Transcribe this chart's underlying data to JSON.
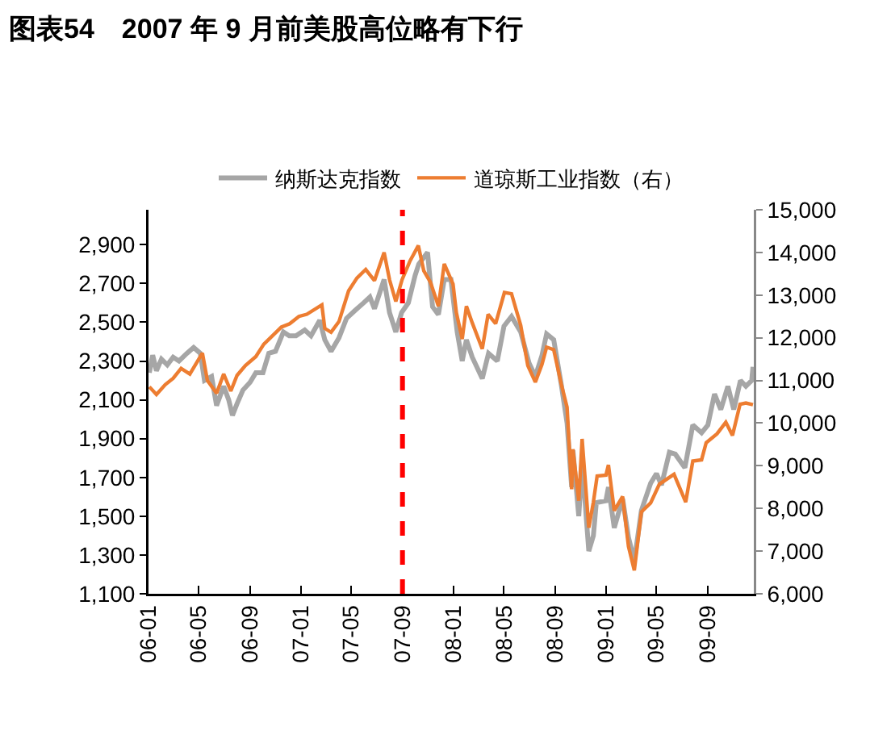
{
  "chart_data": {
    "type": "line",
    "title": "图表54　2007 年 9 月前美股高位略有下行",
    "xlim": [
      "2006-01-01",
      "2009-12-20"
    ],
    "xticks": [
      {
        "value": "2006-01-01",
        "label": "06-01"
      },
      {
        "value": "2006-05-01",
        "label": "06-05"
      },
      {
        "value": "2006-09-01",
        "label": "06-09"
      },
      {
        "value": "2007-01-01",
        "label": "07-01"
      },
      {
        "value": "2007-05-01",
        "label": "07-05"
      },
      {
        "value": "2007-09-01",
        "label": "07-09"
      },
      {
        "value": "2008-01-01",
        "label": "08-01"
      },
      {
        "value": "2008-05-01",
        "label": "08-05"
      },
      {
        "value": "2008-09-01",
        "label": "08-09"
      },
      {
        "value": "2009-01-01",
        "label": "09-01"
      },
      {
        "value": "2009-05-01",
        "label": "09-05"
      },
      {
        "value": "2009-09-01",
        "label": "09-09"
      }
    ],
    "ylim": [
      1100,
      3080
    ],
    "yticks": [
      {
        "value": 1100,
        "label": "1,100"
      },
      {
        "value": 1300,
        "label": "1,300"
      },
      {
        "value": 1500,
        "label": "1,500"
      },
      {
        "value": 1700,
        "label": "1,700"
      },
      {
        "value": 1900,
        "label": "1,900"
      },
      {
        "value": 2100,
        "label": "2,100"
      },
      {
        "value": 2300,
        "label": "2,300"
      },
      {
        "value": 2500,
        "label": "2,500"
      },
      {
        "value": 2700,
        "label": "2,700"
      },
      {
        "value": 2900,
        "label": "2,900"
      }
    ],
    "y2lim": [
      6000,
      15000
    ],
    "y2ticks": [
      {
        "value": 6000,
        "label": "6,000"
      },
      {
        "value": 7000,
        "label": "7,000"
      },
      {
        "value": 8000,
        "label": "8,000"
      },
      {
        "value": 9000,
        "label": "9,000"
      },
      {
        "value": 10000,
        "label": "10,000"
      },
      {
        "value": 11000,
        "label": "11,000"
      },
      {
        "value": 12000,
        "label": "12,000"
      },
      {
        "value": 13000,
        "label": "13,000"
      },
      {
        "value": 14000,
        "label": "14,000"
      },
      {
        "value": 15000,
        "label": "15,000"
      }
    ],
    "grid": false,
    "legend": "top",
    "line_style": "solid",
    "marker": "none",
    "ref_lines": [
      {
        "axis": "x",
        "value": "2007-09-01",
        "color": "#ff0000",
        "line_style": "dashed"
      }
    ],
    "series": [
      {
        "name": "纳斯达克指数",
        "color": "#a6a6a6",
        "x": [
          "2006-01-03",
          "2006-01-11",
          "2006-01-20",
          "2006-02-01",
          "2006-02-15",
          "2006-03-01",
          "2006-03-15",
          "2006-04-03",
          "2006-04-19",
          "2006-05-05",
          "2006-05-15",
          "2006-06-01",
          "2006-06-13",
          "2006-06-30",
          "2006-07-12",
          "2006-07-21",
          "2006-08-01",
          "2006-08-15",
          "2006-09-01",
          "2006-09-15",
          "2006-10-02",
          "2006-10-16",
          "2006-11-01",
          "2006-11-20",
          "2006-12-04",
          "2006-12-20",
          "2007-01-10",
          "2007-01-25",
          "2007-02-15",
          "2007-02-27",
          "2007-03-14",
          "2007-04-02",
          "2007-04-20",
          "2007-05-10",
          "2007-05-31",
          "2007-06-15",
          "2007-06-26",
          "2007-07-19",
          "2007-08-01",
          "2007-08-16",
          "2007-08-30",
          "2007-09-15",
          "2007-10-01",
          "2007-10-10",
          "2007-10-31",
          "2007-11-12",
          "2007-11-26",
          "2007-12-10",
          "2007-12-26",
          "2008-01-10",
          "2008-01-22",
          "2008-02-01",
          "2008-02-15",
          "2008-03-10",
          "2008-03-25",
          "2008-04-15",
          "2008-05-01",
          "2008-05-19",
          "2008-06-10",
          "2008-06-30",
          "2008-07-15",
          "2008-07-31",
          "2008-08-11",
          "2008-08-28",
          "2008-09-15",
          "2008-09-29",
          "2008-10-10",
          "2008-10-13",
          "2008-10-27",
          "2008-11-04",
          "2008-11-20",
          "2008-12-01",
          "2008-12-08",
          "2008-12-31",
          "2009-01-06",
          "2009-01-20",
          "2009-02-09",
          "2009-02-23",
          "2009-03-09",
          "2009-03-26",
          "2009-04-17",
          "2009-05-01",
          "2009-05-13",
          "2009-06-01",
          "2009-06-15",
          "2009-07-08",
          "2009-07-27",
          "2009-08-17",
          "2009-09-01",
          "2009-09-17",
          "2009-10-02",
          "2009-10-19",
          "2009-11-02",
          "2009-11-18",
          "2009-12-01",
          "2009-12-15",
          "2009-12-18"
        ],
        "values": [
          2240,
          2330,
          2250,
          2310,
          2280,
          2320,
          2300,
          2340,
          2370,
          2340,
          2200,
          2220,
          2070,
          2170,
          2100,
          2020,
          2080,
          2150,
          2190,
          2240,
          2240,
          2340,
          2350,
          2450,
          2430,
          2430,
          2460,
          2430,
          2510,
          2410,
          2350,
          2420,
          2520,
          2560,
          2600,
          2630,
          2570,
          2720,
          2550,
          2450,
          2550,
          2600,
          2740,
          2800,
          2860,
          2580,
          2540,
          2720,
          2720,
          2450,
          2300,
          2410,
          2320,
          2210,
          2340,
          2300,
          2480,
          2530,
          2450,
          2290,
          2220,
          2330,
          2440,
          2410,
          2180,
          1980,
          1650,
          1840,
          1500,
          1780,
          1320,
          1400,
          1570,
          1580,
          1650,
          1440,
          1590,
          1390,
          1270,
          1530,
          1670,
          1720,
          1660,
          1830,
          1820,
          1750,
          1970,
          1930,
          1970,
          2130,
          2050,
          2170,
          2050,
          2200,
          2170,
          2200,
          2270
        ]
      },
      {
        "name": "道琼斯工业指数（右）",
        "color": "#ed7d31",
        "axis": "y2",
        "x": [
          "2006-01-03",
          "2006-01-20",
          "2006-02-10",
          "2006-03-01",
          "2006-03-20",
          "2006-04-10",
          "2006-05-10",
          "2006-05-22",
          "2006-06-13",
          "2006-06-30",
          "2006-07-17",
          "2006-08-01",
          "2006-08-21",
          "2006-09-15",
          "2006-10-04",
          "2006-10-20",
          "2006-11-15",
          "2006-12-05",
          "2006-12-27",
          "2007-01-15",
          "2007-02-20",
          "2007-02-27",
          "2007-03-14",
          "2007-04-02",
          "2007-04-25",
          "2007-05-15",
          "2007-06-05",
          "2007-06-26",
          "2007-07-19",
          "2007-08-01",
          "2007-08-16",
          "2007-08-31",
          "2007-09-19",
          "2007-10-09",
          "2007-10-22",
          "2007-11-07",
          "2007-11-26",
          "2007-12-10",
          "2007-12-31",
          "2008-01-08",
          "2008-01-22",
          "2008-02-01",
          "2008-02-15",
          "2008-03-10",
          "2008-03-24",
          "2008-04-11",
          "2008-05-02",
          "2008-05-19",
          "2008-06-10",
          "2008-06-27",
          "2008-07-15",
          "2008-07-31",
          "2008-08-11",
          "2008-08-28",
          "2008-09-15",
          "2008-09-29",
          "2008-10-10",
          "2008-10-13",
          "2008-10-27",
          "2008-11-04",
          "2008-11-20",
          "2008-12-01",
          "2008-12-10",
          "2008-12-31",
          "2009-01-06",
          "2009-01-20",
          "2009-02-09",
          "2009-02-23",
          "2009-03-09",
          "2009-03-26",
          "2009-04-17",
          "2009-05-08",
          "2009-06-12",
          "2009-07-10",
          "2009-07-27",
          "2009-08-17",
          "2009-08-28",
          "2009-09-23",
          "2009-10-14",
          "2009-10-30",
          "2009-11-17",
          "2009-12-01",
          "2009-12-18"
        ],
        "values": [
          10850,
          10670,
          10900,
          11050,
          11280,
          11150,
          11640,
          11000,
          10700,
          11150,
          10750,
          11120,
          11350,
          11560,
          11850,
          12000,
          12250,
          12330,
          12500,
          12550,
          12770,
          12220,
          12130,
          12380,
          13100,
          13400,
          13600,
          13340,
          14000,
          13360,
          12850,
          13360,
          13800,
          14160,
          13570,
          13300,
          12740,
          13730,
          13260,
          12590,
          11970,
          12740,
          12350,
          11740,
          12550,
          12330,
          13060,
          13030,
          12290,
          11350,
          10960,
          11380,
          11780,
          11720,
          10920,
          10370,
          8450,
          9390,
          8180,
          9630,
          7550,
          8150,
          8760,
          8780,
          9020,
          7950,
          8280,
          7110,
          6550,
          7920,
          8130,
          8570,
          8800,
          8150,
          9110,
          9140,
          9540,
          9750,
          10020,
          9710,
          10440,
          10470,
          10430
        ]
      }
    ]
  }
}
